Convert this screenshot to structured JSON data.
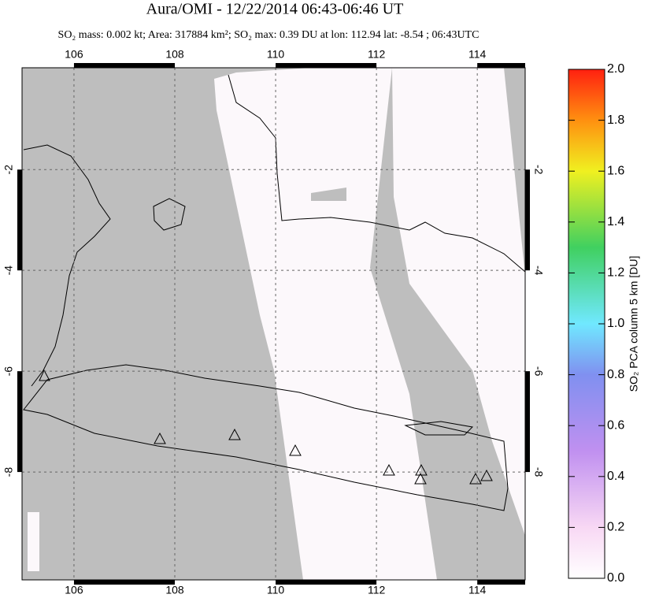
{
  "map": {
    "title": "Aura/OMI - 12/22/2014 06:43-06:46 UT",
    "subtitle": "SO₂ mass: 0.002 kt; Area: 317884 km²; SO₂ max: 0.39 DU at lon: 112.94 lat: -8.54 ; 06:43UTC",
    "xlim": [
      104.97,
      114.95
    ],
    "ylim": [
      -10.14,
      0.02
    ],
    "xticks": [
      106,
      108,
      110,
      112,
      114
    ],
    "yticks": [
      -2,
      -4,
      -6,
      -8
    ],
    "grid": true,
    "colorbar": {
      "label": "SO₂ PCA column 5 km [DU]",
      "lim": [
        0,
        2
      ],
      "ticks": [
        {
          "value": 0,
          "label": "0.0"
        },
        {
          "value": 0.2,
          "label": "0.2"
        },
        {
          "value": 0.4,
          "label": "0.4"
        },
        {
          "value": 0.6,
          "label": "0.6"
        },
        {
          "value": 0.8,
          "label": "0.8"
        },
        {
          "value": 1,
          "label": "1.0"
        },
        {
          "value": 1.2,
          "label": "1.2"
        },
        {
          "value": 1.4,
          "label": "1.4"
        },
        {
          "value": 1.6,
          "label": "1.6"
        },
        {
          "value": 1.8,
          "label": "1.8"
        },
        {
          "value": 2,
          "label": "2.0"
        }
      ]
    }
  }
}
